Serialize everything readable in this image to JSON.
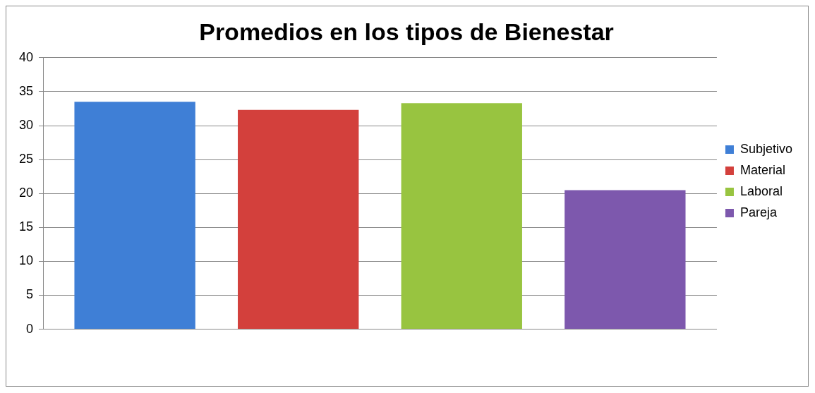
{
  "chart_data": {
    "type": "bar",
    "title": "Promedios en los tipos de Bienestar",
    "categories": [
      null
    ],
    "series": [
      {
        "name": "Subjetivo",
        "color": "#3f7fd6",
        "values": [
          33.5
        ]
      },
      {
        "name": "Material",
        "color": "#d3403c",
        "values": [
          32.3
        ]
      },
      {
        "name": "Laboral",
        "color": "#98c440",
        "values": [
          33.3
        ]
      },
      {
        "name": "Pareja",
        "color": "#7d58ad",
        "values": [
          20.5
        ]
      }
    ],
    "ylim": [
      0,
      40
    ],
    "yticks": [
      0,
      5,
      10,
      15,
      20,
      25,
      30,
      35,
      40
    ],
    "grid": "y",
    "legend": "right"
  }
}
